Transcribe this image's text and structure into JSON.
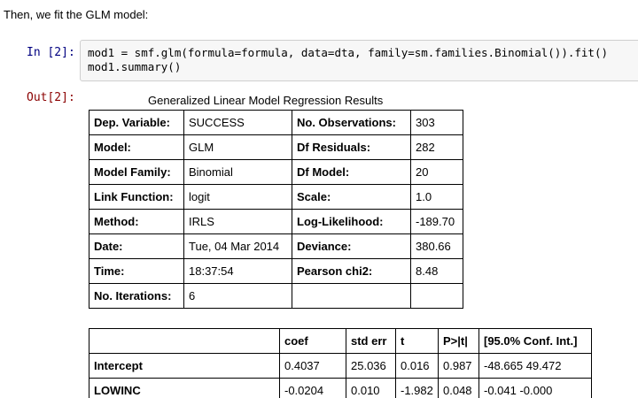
{
  "markdown_text": "Then, we fit the GLM model:",
  "input_prompt": "In [2]:",
  "output_prompt": "Out[2]:",
  "code_lines": [
    "mod1 = smf.glm(formula=formula, data=dta, family=sm.families.Binomial()).fit()",
    "mod1.summary()"
  ],
  "summary": {
    "title": "Generalized Linear Model Regression Results",
    "rows": [
      [
        "Dep. Variable:",
        "SUCCESS",
        "No. Observations:",
        "303"
      ],
      [
        "Model:",
        "GLM",
        "Df Residuals:",
        "282"
      ],
      [
        "Model Family:",
        "Binomial",
        "Df Model:",
        "20"
      ],
      [
        "Link Function:",
        "logit",
        "Scale:",
        "1.0"
      ],
      [
        "Method:",
        "IRLS",
        "Log-Likelihood:",
        "-189.70"
      ],
      [
        "Date:",
        "Tue, 04 Mar 2014",
        "Deviance:",
        "380.66"
      ],
      [
        "Time:",
        "18:37:54",
        "Pearson chi2:",
        "8.48"
      ],
      [
        "No. Iterations:",
        "6",
        "",
        ""
      ]
    ]
  },
  "coef_table": {
    "headers": [
      "",
      "coef",
      "std err",
      "t",
      "P>|t|",
      "[95.0% Conf. Int.]"
    ],
    "rows": [
      [
        "Intercept",
        "0.4037",
        "25.036",
        "0.016",
        "0.987",
        "-48.665 49.472"
      ],
      [
        "LOWINC",
        "-0.0204",
        "0.010",
        "-1.982",
        "0.048",
        "-0.041 -0.000"
      ]
    ]
  }
}
